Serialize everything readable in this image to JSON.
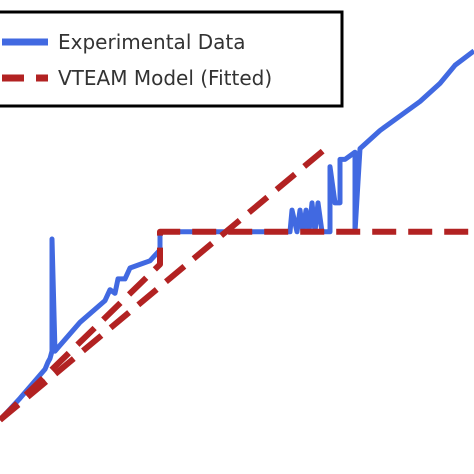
{
  "colors": {
    "experimental": "#4169e1",
    "model": "#b22222",
    "legend_border": "#000000",
    "text": "#333333"
  },
  "chart_data": {
    "type": "line",
    "title": "",
    "xlabel": "",
    "ylabel": "",
    "grid": false,
    "legend_placement": "top-left",
    "series": [
      {
        "name": "Experimental Data",
        "style": "solid",
        "x": [
          0,
          20,
          45,
          48,
          50,
          52,
          52,
          55,
          58,
          80,
          105,
          110,
          115,
          118,
          125,
          130,
          140,
          150,
          160,
          160,
          165,
          200,
          240,
          280,
          290,
          292,
          297,
          300,
          303,
          306,
          309,
          312,
          315,
          318,
          322,
          326,
          330,
          330,
          335,
          340,
          340,
          345,
          350,
          355,
          355,
          360,
          380,
          400,
          420,
          440,
          455,
          474
        ],
        "y": [
          0,
          0.06,
          0.14,
          0.16,
          0.17,
          0.19,
          0.5,
          0.19,
          0.2,
          0.27,
          0.33,
          0.36,
          0.35,
          0.39,
          0.39,
          0.42,
          0.43,
          0.44,
          0.47,
          0.52,
          0.52,
          0.52,
          0.52,
          0.52,
          0.52,
          0.58,
          0.52,
          0.58,
          0.52,
          0.58,
          0.52,
          0.6,
          0.52,
          0.6,
          0.52,
          0.52,
          0.52,
          0.7,
          0.6,
          0.6,
          0.72,
          0.72,
          0.73,
          0.74,
          0.52,
          0.75,
          0.8,
          0.84,
          0.88,
          0.93,
          0.98,
          1.02
        ]
      },
      {
        "name": "VTEAM Model (Fitted)",
        "style": "dashed",
        "x": [
          0,
          160,
          160,
          330,
          330,
          474
        ],
        "y": [
          0,
          0.43,
          0.52,
          0.52,
          0.52,
          0.52
        ]
      }
    ],
    "diagonal_model": {
      "x": [
        0,
        330
      ],
      "y": [
        0,
        0.76
      ]
    },
    "xlim": [
      0,
      474
    ],
    "ylim": [
      0,
      1.05
    ]
  }
}
